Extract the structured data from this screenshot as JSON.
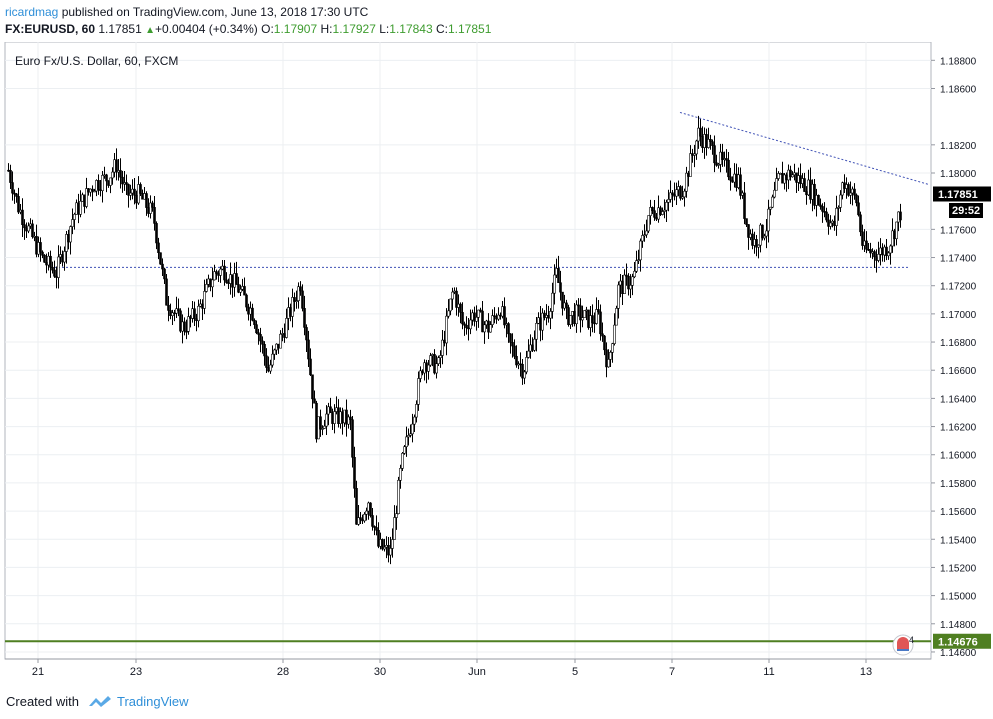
{
  "header": {
    "publisher": "ricardmag",
    "published_text": "published on TradingView.com, June 13, 2018 17:30 UTC",
    "symbol": "FX:EURUSD, 60",
    "last": "1.17851",
    "change": "+0.00404 (+0.34%)",
    "o_label": "O:",
    "o_value": "1.17907",
    "h_label": "H:",
    "h_value": "1.17927",
    "l_label": "L:",
    "l_value": "1.17843",
    "c_label": "C:",
    "c_value": "1.17851"
  },
  "footer": {
    "created_with": "Created with",
    "brand": "TradingView"
  },
  "colors": {
    "candle": "#000000",
    "trendline": "#3f51b5",
    "support_line": "#3f51b5",
    "horizontal_green": "#4f7f21",
    "price_badge_bg": "#000000",
    "green_badge_bg": "#4f7f21",
    "up_text": "#3e9c2f",
    "brand_blue": "#2f8fd8"
  },
  "chart_data": {
    "type": "candlestick",
    "title": "Euro Fx/U.S. Dollar, 60, FXCM",
    "ylim": [
      1.1455,
      1.1893
    ],
    "y_ticks": [
      "1.18800",
      "1.18600",
      "1.18200",
      "1.18000",
      "1.17600",
      "1.17400",
      "1.17200",
      "1.17000",
      "1.16800",
      "1.16600",
      "1.16400",
      "1.16200",
      "1.16000",
      "1.15800",
      "1.15600",
      "1.15400",
      "1.15200",
      "1.15000",
      "1.14800",
      "1.14600"
    ],
    "x_ticks": [
      "21",
      "23",
      "28",
      "30",
      "Jun",
      "5",
      "7",
      "11",
      "13"
    ],
    "current_price_label": "1.17851",
    "countdown_label": "29:52",
    "horizontal_level_label": "1.14676",
    "horizontal_level": 1.14676,
    "support_level": 1.1733,
    "trendline": {
      "start": 1.1843,
      "end": 1.1792
    },
    "alerts_badge": "4",
    "close_path": [
      [
        0,
        1.1802
      ],
      [
        10,
        1.1776
      ],
      [
        20,
        1.176
      ],
      [
        35,
        1.1738
      ],
      [
        48,
        1.1729
      ],
      [
        65,
        1.177
      ],
      [
        85,
        1.1792
      ],
      [
        100,
        1.1797
      ],
      [
        108,
        1.1806
      ],
      [
        118,
        1.1785
      ],
      [
        130,
        1.1785
      ],
      [
        145,
        1.177
      ],
      [
        158,
        1.171
      ],
      [
        175,
        1.169
      ],
      [
        190,
        1.1702
      ],
      [
        205,
        1.1728
      ],
      [
        215,
        1.1732
      ],
      [
        230,
        1.1718
      ],
      [
        245,
        1.17
      ],
      [
        260,
        1.166
      ],
      [
        275,
        1.1688
      ],
      [
        292,
        1.1722
      ],
      [
        298,
        1.1685
      ],
      [
        308,
        1.1618
      ],
      [
        318,
        1.1628
      ],
      [
        335,
        1.1626
      ],
      [
        342,
        1.1622
      ],
      [
        348,
        1.1548
      ],
      [
        360,
        1.1568
      ],
      [
        370,
        1.1535
      ],
      [
        382,
        1.153
      ],
      [
        393,
        1.1592
      ],
      [
        405,
        1.163
      ],
      [
        415,
        1.1667
      ],
      [
        430,
        1.1663
      ],
      [
        445,
        1.1718
      ],
      [
        455,
        1.169
      ],
      [
        465,
        1.17
      ],
      [
        480,
        1.169
      ],
      [
        492,
        1.1705
      ],
      [
        500,
        1.168
      ],
      [
        515,
        1.166
      ],
      [
        528,
        1.169
      ],
      [
        540,
        1.1702
      ],
      [
        548,
        1.1728
      ],
      [
        558,
        1.1698
      ],
      [
        570,
        1.17
      ],
      [
        582,
        1.1695
      ],
      [
        590,
        1.1698
      ],
      [
        600,
        1.1662
      ],
      [
        610,
        1.1718
      ],
      [
        625,
        1.1725
      ],
      [
        640,
        1.177
      ],
      [
        660,
        1.178
      ],
      [
        675,
        1.179
      ],
      [
        690,
        1.1828
      ],
      [
        700,
        1.182
      ],
      [
        715,
        1.1805
      ],
      [
        730,
        1.1795
      ],
      [
        738,
        1.1765
      ],
      [
        745,
        1.175
      ],
      [
        758,
        1.1762
      ],
      [
        770,
        1.1795
      ],
      [
        782,
        1.18
      ],
      [
        800,
        1.179
      ],
      [
        815,
        1.1775
      ],
      [
        825,
        1.176
      ],
      [
        835,
        1.1795
      ],
      [
        848,
        1.178
      ],
      [
        855,
        1.1745
      ],
      [
        870,
        1.1743
      ],
      [
        880,
        1.1748
      ],
      [
        892,
        1.1772
      ],
      [
        900,
        1.1785
      ]
    ]
  }
}
